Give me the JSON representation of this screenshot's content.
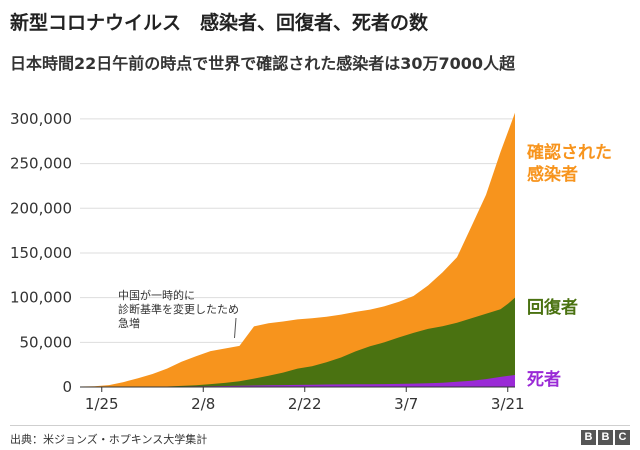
{
  "header": {
    "title": "新型コロナウイルス　感染者、回復者、死者の数",
    "subtitle": "日本時間22日午前の時点で世界で確認された感染者は30万7000人超"
  },
  "footer": {
    "source": "出典：米ジョンズ・ホプキンス大学集計",
    "logo": [
      "B",
      "B",
      "C"
    ]
  },
  "chart_data": {
    "type": "area",
    "title": "新型コロナウイルス　感染者、回復者、死者の数",
    "subtitle": "日本時間22日午前の時点で世界で確認された感染者は30万7000人超",
    "x_ticks": [
      "1/25",
      "2/8",
      "2/22",
      "3/7",
      "3/21"
    ],
    "y_ticks": [
      "300,000",
      "250,000",
      "200,000",
      "150,000",
      "100,000",
      "50,000",
      "0"
    ],
    "ylim": [
      0,
      310000
    ],
    "x": [
      "1/22",
      "1/24",
      "1/26",
      "1/28",
      "1/30",
      "2/1",
      "2/3",
      "2/5",
      "2/7",
      "2/9",
      "2/11",
      "2/13",
      "2/15",
      "2/17",
      "2/19",
      "2/21",
      "2/23",
      "2/25",
      "2/27",
      "2/29",
      "3/2",
      "3/4",
      "3/6",
      "3/8",
      "3/10",
      "3/12",
      "3/14",
      "3/16",
      "3/18",
      "3/20",
      "3/21",
      "3/22"
    ],
    "series": [
      {
        "name": "確認された感染者",
        "color": "#f7941d",
        "values": [
          555,
          900,
          2100,
          5500,
          9800,
          14500,
          20600,
          28200,
          34400,
          40200,
          43100,
          46000,
          67800,
          71300,
          73300,
          75600,
          77000,
          78700,
          81000,
          84100,
          86600,
          90300,
          95400,
          101800,
          113600,
          128300,
          145200,
          180000,
          215000,
          263000,
          285000,
          307000
        ]
      },
      {
        "name": "回復者",
        "color": "#4a7211",
        "values": [
          28,
          40,
          50,
          120,
          170,
          300,
          600,
          1200,
          2000,
          3200,
          4600,
          6400,
          9400,
          12700,
          16100,
          20600,
          23300,
          27800,
          33000,
          39800,
          45600,
          50000,
          55500,
          60500,
          65000,
          68000,
          72000,
          77000,
          82000,
          87000,
          93000,
          100000
        ]
      },
      {
        "name": "死者",
        "color": "#9a2ad6",
        "values": [
          17,
          26,
          56,
          132,
          213,
          259,
          427,
          565,
          724,
          908,
          1115,
          1380,
          1666,
          1868,
          2130,
          2360,
          2460,
          2760,
          2860,
          2980,
          3090,
          3250,
          3460,
          3800,
          4260,
          4720,
          5800,
          7100,
          8800,
          11300,
          12400,
          13400
        ]
      }
    ],
    "series_labels": [
      {
        "text": "確認された\n感染者",
        "color": "#f7941d"
      },
      {
        "text": "回復者",
        "color": "#4a7211"
      },
      {
        "text": "死者",
        "color": "#9a2ad6"
      }
    ],
    "annotation": {
      "text": "中国が一時的に\n診断基準を変更したため\n急増",
      "at_x": "2/13"
    },
    "grid": "horizontal",
    "legend": "right (inline labels)"
  }
}
